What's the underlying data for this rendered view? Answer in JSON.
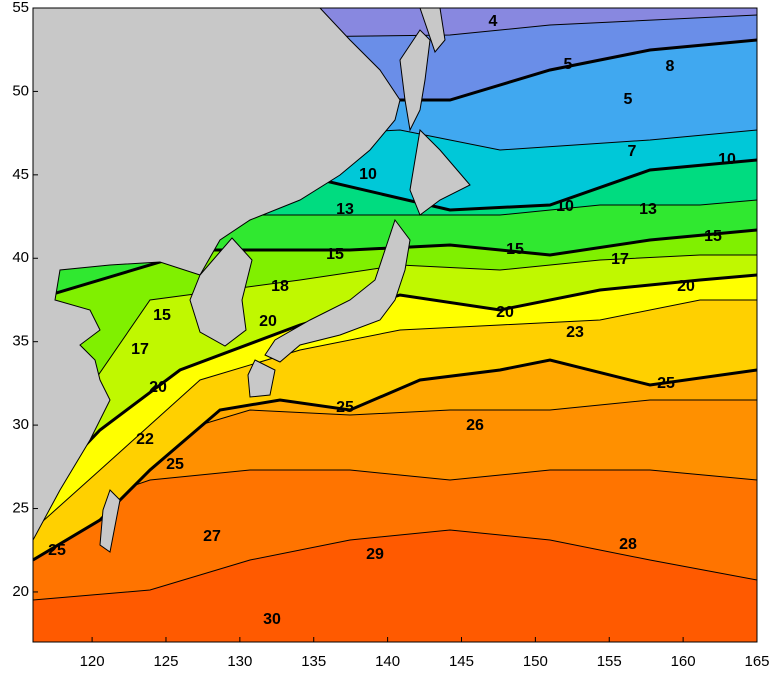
{
  "map": {
    "xlim": [
      116,
      165
    ],
    "ylim": [
      17,
      55
    ],
    "xticks": [
      120,
      125,
      130,
      135,
      140,
      145,
      150,
      155,
      160,
      165
    ],
    "yticks": [
      20,
      25,
      30,
      35,
      40,
      45,
      50,
      55
    ],
    "contour_labels": [
      4,
      5,
      5,
      8,
      7,
      10,
      10,
      10,
      13,
      13,
      15,
      15,
      15,
      15,
      17,
      17,
      18,
      20,
      20,
      20,
      20,
      22,
      23,
      25,
      25,
      25,
      25,
      26,
      27,
      28,
      29,
      30
    ]
  }
}
